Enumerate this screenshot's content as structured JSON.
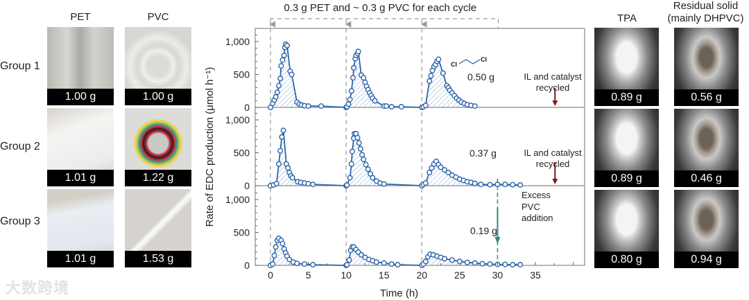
{
  "headers": {
    "pet": "PET",
    "pvc": "PVC",
    "tpa": "TPA",
    "residual_line1": "Residual solid",
    "residual_line2": "(mainly DHPVC)"
  },
  "groups": [
    {
      "label": "Group 1",
      "pet": "1.00 g",
      "pvc": "1.00 g",
      "tpa": "0.89 g",
      "residual": "0.56 g"
    },
    {
      "label": "Group 2",
      "pet": "1.01 g",
      "pvc": "1.22 g",
      "tpa": "0.89 g",
      "residual": "0.46 g"
    },
    {
      "label": "Group 3",
      "pet": "1.01 g",
      "pvc": "1.53 g",
      "tpa": "0.80 g",
      "residual": "0.94 g"
    }
  ],
  "watermark": "大数跨境",
  "colors": {
    "series": "#2b63a9",
    "hatch": "#86a9d3",
    "recycle_arrow": "#7a1c1c",
    "excess_arrow": "#2a8984",
    "dash": "#9a9a9a"
  },
  "chart_data": {
    "type": "line",
    "title": "0.3 g PET and ~ 0.3 g PVC for each cycle",
    "xlabel": "Time (h)",
    "ylabel": "Rate of EDC production (μmol h⁻¹)",
    "xlim": [
      -2.5,
      41
    ],
    "ylim": [
      0,
      1200
    ],
    "xticks": [
      0,
      5,
      10,
      15,
      20,
      25,
      30,
      35
    ],
    "xtick_labels": [
      "0",
      "5",
      "10",
      "15",
      "20",
      "25",
      "30",
      "35"
    ],
    "yticks": [
      0,
      500,
      1000
    ],
    "ytick_labels": [
      "0",
      "500",
      "1,000"
    ],
    "cycle_starts": [
      0,
      10,
      20
    ],
    "panels": [
      {
        "group": "Group 1",
        "edc_mass": "0.50 g",
        "molecule_labels": [
          "Cl",
          "Cl"
        ],
        "note_line1": "IL and catalyst",
        "note_line2": "recycled",
        "arrow_time": 37.5,
        "cycles": [
          [
            [
              0,
              0
            ],
            [
              0.3,
              60
            ],
            [
              0.5,
              110
            ],
            [
              0.7,
              160
            ],
            [
              0.9,
              230
            ],
            [
              1.1,
              330
            ],
            [
              1.3,
              440
            ],
            [
              1.4,
              630
            ],
            [
              1.6,
              720
            ],
            [
              1.8,
              790
            ],
            [
              1.9,
              910
            ],
            [
              2.0,
              960
            ],
            [
              2.2,
              940
            ],
            [
              2.6,
              550
            ],
            [
              2.8,
              500
            ],
            [
              3.5,
              80
            ],
            [
              3.8,
              50
            ],
            [
              4.1,
              35
            ],
            [
              4.5,
              25
            ],
            [
              5.0,
              20
            ],
            [
              6.7,
              20
            ],
            [
              10,
              0
            ]
          ],
          [
            [
              10.1,
              10
            ],
            [
              10.3,
              50
            ],
            [
              10.5,
              120
            ],
            [
              10.7,
              250
            ],
            [
              10.9,
              450
            ],
            [
              11.0,
              600
            ],
            [
              11.2,
              740
            ],
            [
              11.3,
              790
            ],
            [
              11.5,
              820
            ],
            [
              11.6,
              850
            ],
            [
              12.0,
              490
            ],
            [
              12.3,
              450
            ],
            [
              12.5,
              380
            ],
            [
              12.7,
              320
            ],
            [
              12.9,
              270
            ],
            [
              13.1,
              220
            ],
            [
              13.3,
              180
            ],
            [
              13.5,
              140
            ],
            [
              13.8,
              100
            ],
            [
              15.0,
              20
            ],
            [
              15.3,
              20
            ],
            [
              16.0,
              10
            ],
            [
              17.3,
              10
            ],
            [
              20,
              0
            ]
          ],
          [
            [
              20.2,
              10
            ],
            [
              20.5,
              30
            ],
            [
              21.0,
              400
            ],
            [
              21.2,
              480
            ],
            [
              21.4,
              560
            ],
            [
              21.6,
              620
            ],
            [
              21.8,
              650
            ],
            [
              22.0,
              700
            ],
            [
              22.2,
              730
            ],
            [
              22.8,
              520
            ],
            [
              23.3,
              330
            ],
            [
              23.5,
              300
            ],
            [
              23.7,
              260
            ],
            [
              24.0,
              220
            ],
            [
              24.3,
              180
            ],
            [
              24.6,
              140
            ],
            [
              24.9,
              110
            ],
            [
              25.2,
              80
            ],
            [
              25.6,
              60
            ],
            [
              26.0,
              40
            ],
            [
              26.5,
              30
            ],
            [
              27.0,
              20
            ]
          ]
        ]
      },
      {
        "group": "Group 2",
        "edc_mass": "0.37 g",
        "note_line1": "IL and catalyst",
        "note_line2": "recycled",
        "arrow_time": 37.5,
        "cycles": [
          [
            [
              0,
              0
            ],
            [
              0.4,
              10
            ],
            [
              0.8,
              30
            ],
            [
              1.1,
              330
            ],
            [
              1.3,
              530
            ],
            [
              1.5,
              740
            ],
            [
              1.7,
              840
            ],
            [
              2.1,
              330
            ],
            [
              2.3,
              270
            ],
            [
              2.5,
              200
            ],
            [
              2.7,
              150
            ],
            [
              2.9,
              120
            ],
            [
              3.6,
              60
            ],
            [
              4.0,
              50
            ],
            [
              4.5,
              40
            ],
            [
              5.0,
              30
            ],
            [
              5.6,
              20
            ],
            [
              10,
              0
            ]
          ],
          [
            [
              10.1,
              10
            ],
            [
              10.5,
              120
            ],
            [
              10.7,
              330
            ],
            [
              10.8,
              520
            ],
            [
              11.0,
              720
            ],
            [
              11.1,
              790
            ],
            [
              11.3,
              790
            ],
            [
              11.5,
              730
            ],
            [
              11.7,
              650
            ],
            [
              11.9,
              560
            ],
            [
              12.1,
              470
            ],
            [
              12.3,
              400
            ],
            [
              12.6,
              320
            ],
            [
              12.9,
              250
            ],
            [
              13.2,
              180
            ],
            [
              13.5,
              120
            ],
            [
              14.0,
              70
            ],
            [
              14.5,
              40
            ],
            [
              15.0,
              25
            ],
            [
              20,
              0
            ]
          ],
          [
            [
              20.2,
              20
            ],
            [
              20.5,
              40
            ],
            [
              21.0,
              200
            ],
            [
              21.3,
              270
            ],
            [
              21.6,
              330
            ],
            [
              21.9,
              370
            ],
            [
              22.2,
              320
            ],
            [
              22.5,
              280
            ],
            [
              23.0,
              240
            ],
            [
              23.5,
              200
            ],
            [
              24.0,
              160
            ],
            [
              24.5,
              130
            ],
            [
              25.0,
              100
            ],
            [
              25.5,
              80
            ],
            [
              26.0,
              60
            ],
            [
              26.5,
              50
            ],
            [
              27.0,
              35
            ],
            [
              27.8,
              20
            ],
            [
              29,
              15
            ],
            [
              30,
              20
            ],
            [
              31,
              20
            ],
            [
              32,
              15
            ],
            [
              33,
              10
            ]
          ]
        ]
      },
      {
        "group": "Group 3",
        "edc_mass": "0.19 g",
        "note_line1": "Excess",
        "note_line2": "PVC",
        "note_line3": "addition",
        "arrow_time": 30,
        "cycles": [
          [
            [
              0,
              0
            ],
            [
              0.3,
              20
            ],
            [
              0.5,
              150
            ],
            [
              0.7,
              280
            ],
            [
              0.9,
              380
            ],
            [
              1.1,
              410
            ],
            [
              1.4,
              380
            ],
            [
              1.6,
              330
            ],
            [
              1.8,
              250
            ],
            [
              2.0,
              190
            ],
            [
              2.2,
              140
            ],
            [
              2.5,
              90
            ],
            [
              3.0,
              50
            ],
            [
              3.5,
              30
            ],
            [
              4.5,
              20
            ],
            [
              5.6,
              10
            ],
            [
              10,
              0
            ]
          ],
          [
            [
              10.1,
              10
            ],
            [
              10.4,
              80
            ],
            [
              10.6,
              230
            ],
            [
              10.8,
              280
            ],
            [
              11.0,
              280
            ],
            [
              11.3,
              240
            ],
            [
              11.6,
              200
            ],
            [
              12.0,
              160
            ],
            [
              12.5,
              120
            ],
            [
              13.0,
              90
            ],
            [
              13.5,
              70
            ],
            [
              14.0,
              50
            ],
            [
              15.0,
              35
            ],
            [
              16.0,
              20
            ],
            [
              16.8,
              10
            ],
            [
              20,
              0
            ]
          ],
          [
            [
              20.2,
              20
            ],
            [
              20.5,
              60
            ],
            [
              20.8,
              130
            ],
            [
              21.1,
              170
            ],
            [
              21.5,
              160
            ],
            [
              22.0,
              140
            ],
            [
              22.5,
              120
            ],
            [
              23.0,
              100
            ],
            [
              24.0,
              80
            ],
            [
              25.0,
              60
            ],
            [
              26.0,
              45
            ],
            [
              27.0,
              35
            ],
            [
              28.0,
              25
            ],
            [
              29.0,
              20
            ],
            [
              30,
              15
            ],
            [
              31,
              15
            ],
            [
              32,
              10
            ],
            [
              33,
              10
            ]
          ]
        ]
      }
    ]
  }
}
